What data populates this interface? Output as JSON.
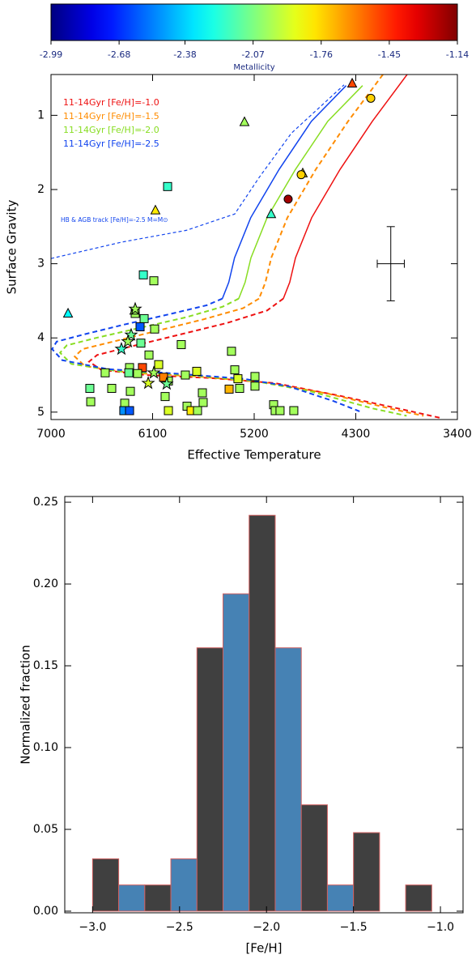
{
  "chart_data": [
    {
      "type": "scatter",
      "xlabel": "Effective Temperature",
      "ylabel": "Surface Gravity",
      "xlim": [
        7000,
        3400
      ],
      "ylim": [
        5.1,
        0.45
      ],
      "xticks": [
        7000,
        6100,
        5200,
        4300,
        3400
      ],
      "yticks": [
        1,
        2,
        3,
        4,
        5
      ],
      "colorbar": {
        "label": "Metallicity",
        "colormap": "jet",
        "lim": [
          -2.99,
          -1.14
        ],
        "ticks": [
          -2.99,
          -2.68,
          -2.38,
          -2.07,
          -1.76,
          -1.45,
          -1.14
        ]
      },
      "series": [
        {
          "name": "11-14Gyr [Fe/H]=-1.0",
          "color": "#ee1111",
          "segments": [
            {
              "style": "solid",
              "x": [
                3845,
                4153,
                4440,
                4691,
                4834,
                4885,
                4942
              ],
              "y": [
                0.45,
                1.08,
                1.73,
                2.38,
                2.92,
                3.25,
                3.47
              ]
            },
            {
              "style": "dashed",
              "x": [
                4942,
                5085,
                5444,
                5874,
                6304,
                6591,
                6663,
                6555,
                6161,
                5587,
                5014,
                4440,
                3866,
                3544
              ],
              "y": [
                3.47,
                3.63,
                3.8,
                3.96,
                4.12,
                4.23,
                4.32,
                4.43,
                4.5,
                4.54,
                4.61,
                4.78,
                4.97,
                5.08
              ]
            }
          ]
        },
        {
          "name": "11-14Gyr [Fe/H]=-1.5",
          "color": "#ff8c00",
          "segments": [
            {
              "style": "dashed",
              "x": [
                4060,
                4368,
                4655,
                4906,
                5049,
                5100,
                5157
              ],
              "y": [
                0.45,
                1.08,
                1.73,
                2.38,
                2.92,
                3.25,
                3.47
              ]
            },
            {
              "style": "dashed",
              "x": [
                5157,
                5300,
                5650,
                6050,
                6450,
                6720,
                6790,
                6700,
                6300,
                5700,
                5100,
                4550,
                4000,
                3700
              ],
              "y": [
                3.47,
                3.6,
                3.75,
                3.9,
                4.05,
                4.15,
                4.25,
                4.38,
                4.47,
                4.52,
                4.6,
                4.75,
                4.95,
                5.05
              ]
            }
          ]
        },
        {
          "name": "11-14Gyr [Fe/H]=-2.0",
          "color": "#88dd22",
          "segments": [
            {
              "style": "solid",
              "x": [
                4240,
                4548,
                4835,
                5086,
                5229,
                5280,
                5337
              ],
              "y": [
                0.6,
                1.08,
                1.73,
                2.38,
                2.92,
                3.25,
                3.47
              ]
            },
            {
              "style": "dashed",
              "x": [
                5337,
                5480,
                5800,
                6200,
                6600,
                6860,
                6920,
                6820,
                6400,
                5800,
                5200,
                4700,
                4150,
                3850
              ],
              "y": [
                3.47,
                3.58,
                3.72,
                3.86,
                4.0,
                4.1,
                4.2,
                4.35,
                4.45,
                4.5,
                4.58,
                4.72,
                4.95,
                5.05
              ]
            }
          ]
        },
        {
          "name": "11-14Gyr [Fe/H]=-2.5",
          "color": "#1144ee",
          "segments": [
            {
              "style": "solid",
              "x": [
                4385,
                4693,
                4980,
                5231,
                5374,
                5425,
                5482
              ],
              "y": [
                0.6,
                1.08,
                1.73,
                2.38,
                2.92,
                3.25,
                3.47
              ]
            },
            {
              "style": "dashed",
              "x": [
                5482,
                5620,
                5950,
                6350,
                6700,
                6950,
                6990,
                6900,
                6500,
                5900,
                5300,
                4900,
                4500,
                4250
              ],
              "y": [
                3.47,
                3.56,
                3.68,
                3.82,
                3.95,
                4.05,
                4.15,
                4.3,
                4.42,
                4.48,
                4.55,
                4.65,
                4.85,
                5.0
              ]
            }
          ]
        }
      ],
      "hb_track": {
        "label": "HB & AGB track  [Fe/H]=-2.5 M=M⊙",
        "color": "#1144ee",
        "x": [
          7000,
          6376,
          5802,
          5372,
          5157,
          4870,
          4404
        ],
        "y": [
          2.93,
          2.71,
          2.55,
          2.33,
          1.84,
          1.24,
          0.59
        ]
      },
      "point_groups": [
        {
          "marker": "square",
          "x": [
            5967,
            6182,
            6089,
            6254,
            6175,
            6082,
            6204,
            6132,
            6211,
            5846,
            6046,
            6304,
            6190,
            6233,
            6311,
            6520,
            5810,
            5960,
            6003,
            5709,
            6462,
            6656,
            6648,
            6347,
            6297,
            5989,
            5795,
            5759,
            5702,
            5652,
            5960,
            6355,
            6304,
            5401,
            5372,
            5344,
            5422,
            5329,
            5193,
            5193,
            5028,
            5014,
            4971,
            4849,
            5659
          ],
          "y": [
            1.96,
            3.15,
            3.23,
            3.67,
            3.74,
            3.88,
            4.07,
            4.23,
            3.85,
            4.09,
            4.36,
            4.4,
            4.4,
            4.48,
            4.47,
            4.47,
            4.5,
            4.58,
            4.53,
            4.45,
            4.68,
            4.68,
            4.86,
            4.88,
            4.72,
            4.79,
            4.92,
            4.98,
            4.98,
            4.87,
            4.98,
            4.98,
            4.98,
            4.18,
            4.43,
            4.55,
            4.69,
            4.68,
            4.52,
            4.65,
            4.9,
            4.98,
            4.98,
            4.98,
            4.74
          ],
          "feh": [
            -2.2,
            -2.2,
            -2.0,
            -2.0,
            -2.1,
            -2.0,
            -2.1,
            -2.0,
            -2.6,
            -2.0,
            -1.9,
            -2.0,
            -1.5,
            -2.0,
            -2.1,
            -2.0,
            -2.0,
            -2.0,
            -1.6,
            -1.9,
            -2.0,
            -2.1,
            -2.0,
            -2.0,
            -2.0,
            -2.0,
            -2.0,
            -1.8,
            -2.0,
            -2.0,
            -1.9,
            -2.5,
            -2.6,
            -2.0,
            -2.0,
            -1.9,
            -1.7,
            -2.0,
            -2.0,
            -2.0,
            -2.0,
            -2.0,
            -2.0,
            -2.0,
            -2.0
          ]
        },
        {
          "marker": "triangle",
          "x": [
            6849,
            6261,
            6075,
            5286,
            5050,
            4770,
            4332
          ],
          "y": [
            3.67,
            3.63,
            2.28,
            1.09,
            2.33,
            1.78,
            0.57
          ],
          "feh": [
            -2.3,
            -2.0,
            -1.8,
            -2.0,
            -2.2,
            -1.8,
            -1.5
          ]
        },
        {
          "marker": "circle",
          "x": [
            4899,
            4167,
            4784
          ],
          "y": [
            2.13,
            0.77,
            1.8
          ],
          "feh": [
            -1.2,
            -1.75,
            -1.75
          ]
        },
        {
          "marker": "star",
          "x": [
            6254,
            6290,
            6319,
            6376,
            6089,
            6139,
            5975
          ],
          "y": [
            3.61,
            3.96,
            4.05,
            4.15,
            4.47,
            4.61,
            4.62
          ],
          "feh": [
            -2.0,
            -2.1,
            -2.0,
            -2.2,
            -2.0,
            -1.9,
            -2.1
          ]
        }
      ],
      "error_bar": {
        "x": 3990,
        "y": 3.0,
        "xerr": 120,
        "yerr": 0.5
      }
    },
    {
      "type": "histogram",
      "xlabel": "[Fe/H]",
      "ylabel": "Normalized fraction",
      "bins": [
        -3.0,
        -2.85,
        -2.7,
        -2.55,
        -2.4,
        -2.25,
        -2.1,
        -1.95,
        -1.8,
        -1.65,
        -1.5,
        -1.35,
        -1.2,
        -1.05
      ],
      "values": [
        0.032,
        0.016,
        0.016,
        0.032,
        0.161,
        0.194,
        0.242,
        0.161,
        0.065,
        0.016,
        0.048,
        0,
        0.016
      ],
      "colors": [
        "#404040",
        "#4682b4"
      ],
      "edgecolor": "#d06060",
      "xlim": [
        -3.16,
        -0.87
      ],
      "ylim": [
        -0.001,
        0.2535
      ],
      "xticks": [
        {
          "value": -3,
          "label": "−3.0"
        },
        {
          "value": -2.5,
          "label": "−2.5"
        },
        {
          "value": -2,
          "label": "−2.0"
        },
        {
          "value": -1.5,
          "label": "−1.5"
        },
        {
          "value": -1,
          "label": "−1.0"
        }
      ],
      "yticks": [
        {
          "value": 0,
          "label": "0.00"
        },
        0.05,
        {
          "value": 0.1,
          "label": "0.10"
        },
        0.15,
        {
          "value": 0.2,
          "label": "0.20"
        },
        0.25
      ]
    }
  ]
}
